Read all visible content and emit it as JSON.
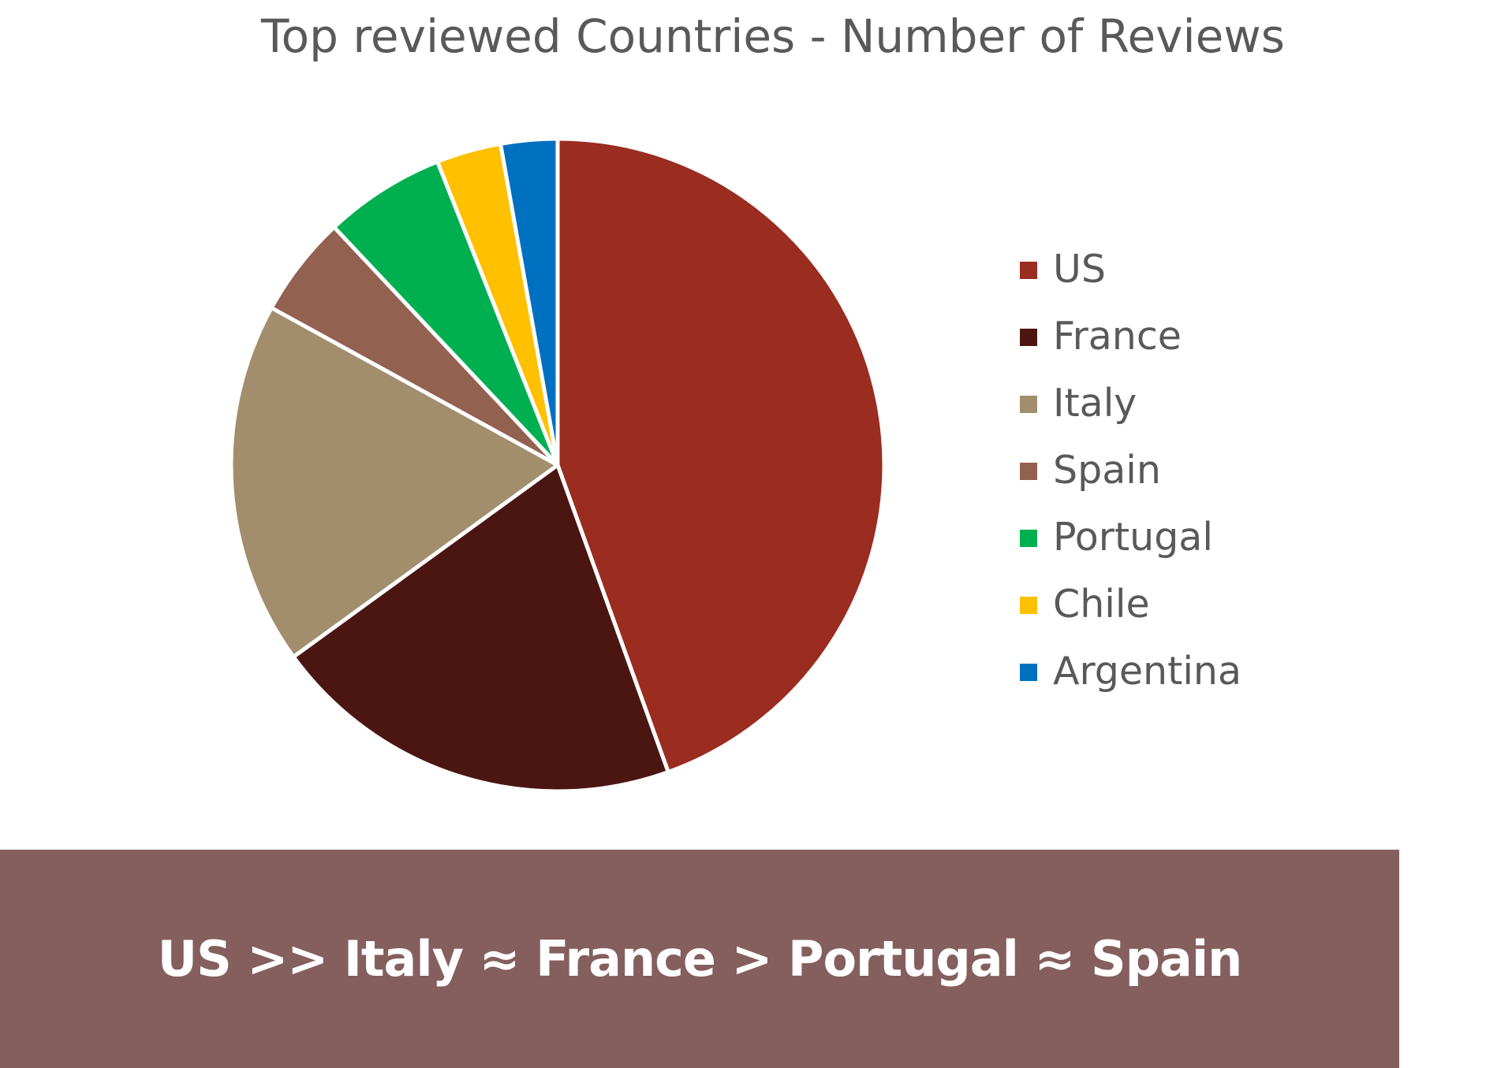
{
  "chart_data": {
    "type": "pie",
    "title": "Top reviewed Countries - Number of Reviews",
    "categories": [
      "US",
      "France",
      "Italy",
      "Spain",
      "Portugal",
      "Chile",
      "Argentina"
    ],
    "values": [
      44.5,
      20.5,
      18.0,
      5.0,
      6.0,
      3.2,
      2.8
    ],
    "colors": [
      "#9A2C20",
      "#4B1612",
      "#A28E6C",
      "#92614F",
      "#00AF50",
      "#FFC000",
      "#0070C0"
    ],
    "legend_position": "right"
  },
  "banner": {
    "text": "US >> Italy ≈ France > Portugal ≈ Spain",
    "background": "#845F5E"
  }
}
